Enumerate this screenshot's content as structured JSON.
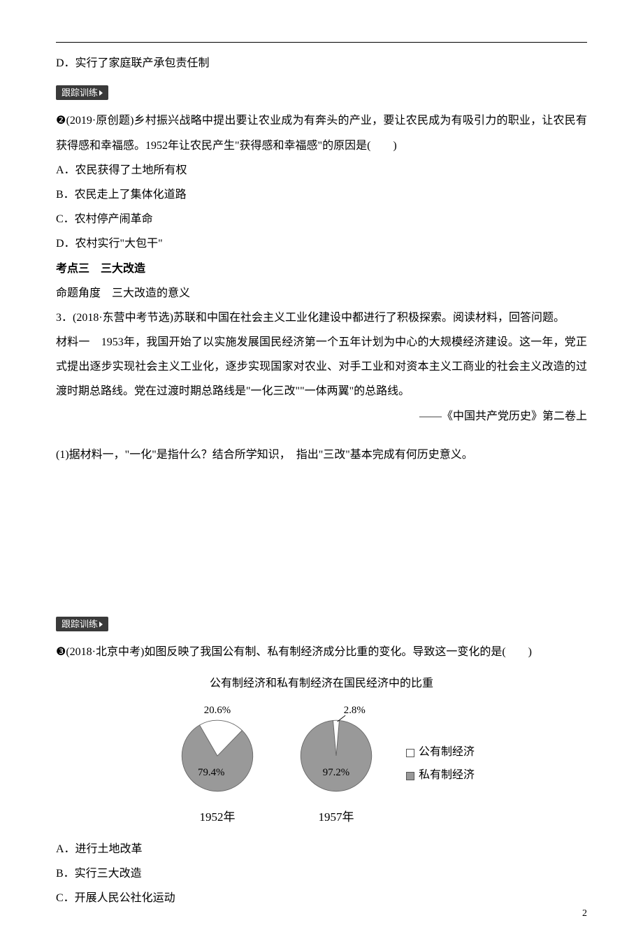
{
  "option_d_top": "D．实行了家庭联产承包责任制",
  "tracking_badge": "跟踪训练",
  "q2": {
    "num": "❷",
    "src": "(2019·原创题)",
    "text": "乡村振兴战略中提出要让农业成为有奔头的产业，要让农民成为有吸引力的职业，让农民有获得感和幸福感。1952年让农民产生\"获得感和幸福感\"的原因是(　　)",
    "optA": "A．农民获得了土地所有权",
    "optB": "B．农民走上了集体化道路",
    "optC": "C．农村停产闹革命",
    "optD": "D．农村实行\"大包干\""
  },
  "kp3": {
    "heading": "考点三　三大改造",
    "sub": "命题角度　三大改造的意义"
  },
  "q3": {
    "num": "3．",
    "src": "(2018·东营中考节选)",
    "text": "苏联和中国在社会主义工业化建设中都进行了积极探索。阅读材料，回答问题。",
    "mat_label": "材料一　",
    "mat_text": "1953年，我国开始了以实施发展国民经济第一个五年计划为中心的大规模经济建设。这一年，党正式提出逐步实现社会主义工业化，逐步实现国家对农业、对手工业和对资本主义工商业的社会主义改造的过渡时期总路线。党在过渡时期总路线是\"一化三改\"\"一体两翼\"的总路线。",
    "mat_src": "——《中国共产党历史》第二卷上",
    "sub1": "(1)据材料一，\"一化\"是指什么？结合所学知识，　指出\"三改\"基本完成有何历史意义。"
  },
  "q_chart": {
    "num": "❸",
    "src": "(2018·北京中考)",
    "text": "如图反映了我国公有制、私有制经济成分比重的变化。导致这一变化的是(　　)",
    "chart_title": "公有制经济和私有制经济在国民经济中的比重",
    "legend_pub": "公有制经济",
    "legend_priv": "私有制经济",
    "year1": "1952年",
    "year2": "1957年",
    "p1_pub": "20.6%",
    "p1_priv": "79.4%",
    "p2_pub": "2.8%",
    "p2_priv": "97.2%",
    "optA": "A．进行土地改革",
    "optB": "B．实行三大改造",
    "optC": "C．开展人民公社化运动"
  },
  "colors": {
    "pub_fill": "#ffffff",
    "priv_fill": "#999999",
    "stroke": "#666666",
    "legend_pub_fill": "#ffffff",
    "legend_priv_fill": "#999999"
  },
  "chart_style": {
    "pie_radius": 58,
    "pie1_pub_pct": 20.6,
    "pie2_pub_pct": 2.8,
    "label_fontsize": 17
  },
  "page_number": "2"
}
